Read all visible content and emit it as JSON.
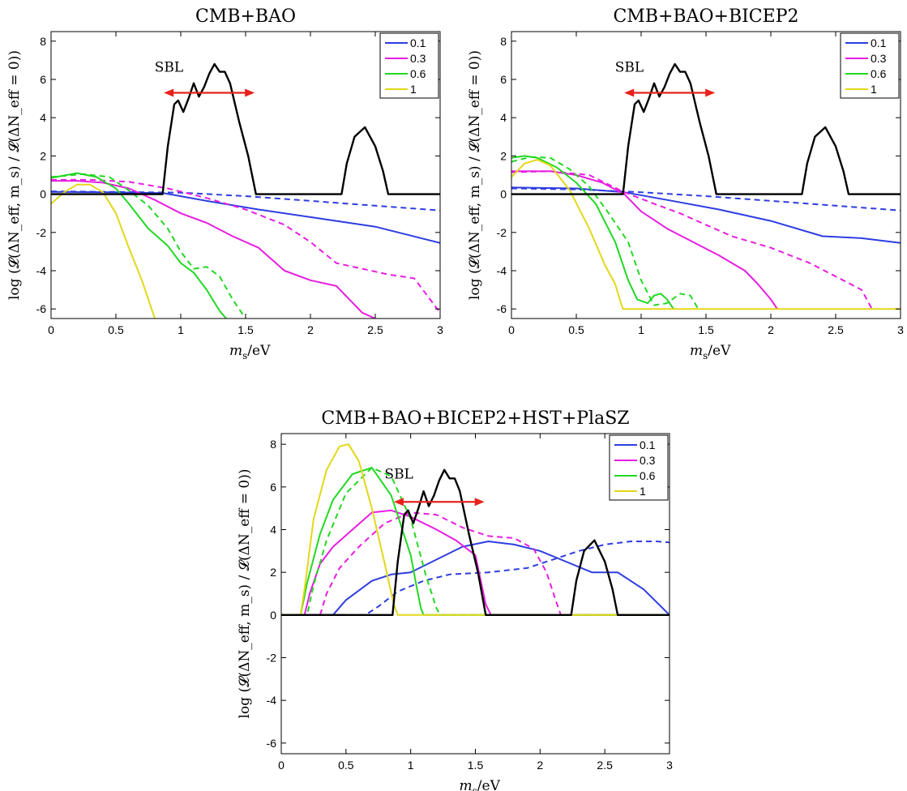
{
  "chart_data": [
    {
      "type": "line",
      "title": "CMB+BAO",
      "xlabel_main": "m",
      "xlabel_sub": "s",
      "xlabel_rest": "/eV",
      "ylabel": "log (𝓛(ΔN_eff, m_s) / 𝓛(ΔN_eff = 0))",
      "xlim": [
        0,
        3
      ],
      "ylim": [
        -6.5,
        8.5
      ],
      "xticks": [
        "0",
        "0.5",
        "1",
        "1.5",
        "2",
        "2.5",
        "3"
      ],
      "yticks": [
        "-6",
        "-4",
        "-2",
        "0",
        "2",
        "4",
        "6",
        "8"
      ],
      "legend": {
        "position": "top-right",
        "entries": [
          "0.1",
          "0.3",
          "0.6",
          "1"
        ]
      },
      "annotation": {
        "label": "SBL",
        "arrow_x": [
          0.87,
          1.57
        ],
        "arrow_y": 5.3,
        "color": "#e8221b"
      },
      "series": [
        {
          "name": "0.1",
          "color": "#2e3de0",
          "dash": false,
          "x": [
            0,
            0.5,
            0.87,
            1.2,
            1.6,
            2.0,
            2.5,
            3.0
          ],
          "y": [
            0.12,
            0.1,
            0.05,
            -0.35,
            -0.8,
            -1.2,
            -1.7,
            -2.55
          ]
        },
        {
          "name": "0.1",
          "color": "#2e3de0",
          "dash": true,
          "x": [
            0,
            0.5,
            1.0,
            1.5,
            2.0,
            2.5,
            3.0
          ],
          "y": [
            0.15,
            0.12,
            0.08,
            -0.1,
            -0.35,
            -0.6,
            -0.85
          ]
        },
        {
          "name": "0.3",
          "color": "#e81ee0",
          "dash": false,
          "x": [
            0,
            0.2,
            0.4,
            0.6,
            0.8,
            1.0,
            1.2,
            1.4,
            1.6,
            1.8,
            2.0,
            2.2,
            2.4,
            2.5
          ],
          "y": [
            0.7,
            0.7,
            0.6,
            0.3,
            -0.3,
            -1.0,
            -1.5,
            -2.2,
            -2.8,
            -4.0,
            -4.5,
            -4.8,
            -6.2,
            -6.5
          ]
        },
        {
          "name": "0.3",
          "color": "#e81ee0",
          "dash": true,
          "x": [
            0,
            0.3,
            0.6,
            0.9,
            1.2,
            1.5,
            1.8,
            2.0,
            2.2,
            2.4,
            2.6,
            2.8,
            3.0
          ],
          "y": [
            0.75,
            0.75,
            0.65,
            0.3,
            -0.2,
            -0.8,
            -1.6,
            -2.5,
            -3.6,
            -3.9,
            -4.2,
            -4.4,
            -6.2
          ]
        },
        {
          "name": "0.6",
          "color": "#22d822",
          "dash": false,
          "x": [
            0,
            0.2,
            0.35,
            0.5,
            0.6,
            0.75,
            0.9,
            1.0,
            1.1,
            1.2,
            1.3,
            1.35
          ],
          "y": [
            0.85,
            1.1,
            0.9,
            0.3,
            -0.5,
            -1.8,
            -2.7,
            -3.6,
            -4.1,
            -5.0,
            -6.1,
            -6.5
          ]
        },
        {
          "name": "0.6",
          "color": "#22d822",
          "dash": true,
          "x": [
            0,
            0.25,
            0.45,
            0.6,
            0.75,
            0.9,
            1.0,
            1.1,
            1.2,
            1.3,
            1.4,
            1.5
          ],
          "y": [
            0.9,
            1.05,
            0.9,
            0.2,
            -0.6,
            -1.8,
            -3.0,
            -3.9,
            -3.8,
            -4.3,
            -5.5,
            -6.5
          ]
        },
        {
          "name": "1",
          "color": "#e3d719",
          "dash": false,
          "x": [
            0,
            0.1,
            0.2,
            0.3,
            0.4,
            0.5,
            0.6,
            0.7,
            0.8
          ],
          "y": [
            -0.5,
            0.1,
            0.5,
            0.5,
            0.1,
            -1.0,
            -2.8,
            -4.5,
            -6.5
          ]
        },
        {
          "name": "SBL",
          "color": "#000000",
          "dash": false,
          "x": [
            0,
            0.86,
            0.9,
            0.95,
            0.98,
            1.02,
            1.06,
            1.1,
            1.14,
            1.18,
            1.22,
            1.26,
            1.3,
            1.34,
            1.38,
            1.45,
            1.52,
            1.58,
            2.24,
            2.28,
            2.34,
            2.42,
            2.5,
            2.56,
            2.6,
            3.0
          ],
          "y": [
            0,
            0,
            2.5,
            4.7,
            4.9,
            4.3,
            5.0,
            5.8,
            5.1,
            5.6,
            6.3,
            6.8,
            6.4,
            6.4,
            5.8,
            3.8,
            2.0,
            0,
            0,
            1.6,
            3.0,
            3.5,
            2.5,
            1.2,
            0,
            0
          ]
        }
      ]
    },
    {
      "type": "line",
      "title": "CMB+BAO+BICEP2",
      "xlabel_main": "m",
      "xlabel_sub": "s",
      "xlabel_rest": "/eV",
      "ylabel": "log (𝓛(ΔN_eff, m_s) / 𝓛(ΔN_eff = 0))",
      "xlim": [
        0,
        3
      ],
      "ylim": [
        -6.5,
        8.5
      ],
      "xticks": [
        "0",
        "0.5",
        "1",
        "1.5",
        "2",
        "2.5",
        "3"
      ],
      "yticks": [
        "-6",
        "-4",
        "-2",
        "0",
        "2",
        "4",
        "6",
        "8"
      ],
      "legend": {
        "position": "top-right",
        "entries": [
          "0.1",
          "0.3",
          "0.6",
          "1"
        ]
      },
      "annotation": {
        "label": "SBL",
        "arrow_x": [
          0.87,
          1.57
        ],
        "arrow_y": 5.3,
        "color": "#e8221b"
      },
      "series": [
        {
          "name": "0.1",
          "color": "#2e3de0",
          "dash": false,
          "x": [
            0,
            0.5,
            0.87,
            1.2,
            1.6,
            2.0,
            2.4,
            2.7,
            3.0
          ],
          "y": [
            0.35,
            0.3,
            0.1,
            -0.3,
            -0.8,
            -1.4,
            -2.2,
            -2.3,
            -2.55
          ]
        },
        {
          "name": "0.1",
          "color": "#2e3de0",
          "dash": true,
          "x": [
            0,
            0.5,
            1.0,
            1.5,
            2.0,
            2.5,
            3.0
          ],
          "y": [
            0.3,
            0.25,
            0.1,
            -0.1,
            -0.35,
            -0.6,
            -0.85
          ]
        },
        {
          "name": "0.3",
          "color": "#e81ee0",
          "dash": false,
          "x": [
            0,
            0.3,
            0.5,
            0.7,
            0.87,
            1.0,
            1.2,
            1.4,
            1.6,
            1.8,
            1.9,
            2.0,
            2.05
          ],
          "y": [
            1.2,
            1.2,
            1.0,
            0.6,
            0.0,
            -0.9,
            -1.8,
            -2.5,
            -3.2,
            -4.0,
            -4.7,
            -5.5,
            -6.0
          ]
        },
        {
          "name": "0.3",
          "color": "#e81ee0",
          "dash": true,
          "x": [
            0,
            0.3,
            0.6,
            0.87,
            1.1,
            1.3,
            1.5,
            1.7,
            2.0,
            2.3,
            2.5,
            2.7,
            2.78
          ],
          "y": [
            1.15,
            1.2,
            1.0,
            0.1,
            -0.5,
            -1.0,
            -1.6,
            -2.2,
            -2.8,
            -3.6,
            -4.3,
            -5.0,
            -6.0
          ]
        },
        {
          "name": "0.6",
          "color": "#22d822",
          "dash": false,
          "x": [
            0,
            0.1,
            0.2,
            0.35,
            0.5,
            0.65,
            0.8,
            0.9,
            0.97,
            1.05,
            1.1,
            1.15,
            1.2,
            1.25
          ],
          "y": [
            1.9,
            2.0,
            1.9,
            1.4,
            0.6,
            -0.5,
            -2.5,
            -4.5,
            -5.5,
            -5.7,
            -5.3,
            -5.2,
            -5.5,
            -6.0
          ]
        },
        {
          "name": "0.6",
          "color": "#22d822",
          "dash": true,
          "x": [
            0,
            0.15,
            0.3,
            0.45,
            0.6,
            0.75,
            0.9,
            1.0,
            1.1,
            1.2,
            1.3,
            1.38,
            1.44
          ],
          "y": [
            1.7,
            1.95,
            1.9,
            1.3,
            0.4,
            -1.0,
            -2.5,
            -4.5,
            -5.8,
            -5.7,
            -5.2,
            -5.3,
            -6.0
          ]
        },
        {
          "name": "1",
          "color": "#e3d719",
          "dash": false,
          "x": [
            0,
            0.1,
            0.2,
            0.3,
            0.45,
            0.6,
            0.72,
            0.8,
            0.84,
            0.86,
            3.0
          ],
          "y": [
            0.9,
            1.6,
            1.8,
            1.5,
            0.2,
            -1.8,
            -3.7,
            -4.7,
            -5.6,
            -6.0,
            -6.0
          ]
        },
        {
          "name": "SBL",
          "color": "#000000",
          "dash": false,
          "x": [
            0,
            0.86,
            0.9,
            0.95,
            0.98,
            1.02,
            1.06,
            1.1,
            1.14,
            1.18,
            1.22,
            1.26,
            1.3,
            1.34,
            1.38,
            1.45,
            1.52,
            1.58,
            2.24,
            2.28,
            2.34,
            2.42,
            2.5,
            2.56,
            2.6,
            3.0
          ],
          "y": [
            0,
            0,
            2.5,
            4.7,
            4.9,
            4.3,
            5.0,
            5.8,
            5.1,
            5.6,
            6.3,
            6.8,
            6.4,
            6.4,
            5.8,
            3.8,
            2.0,
            0,
            0,
            1.6,
            3.0,
            3.5,
            2.5,
            1.2,
            0,
            0
          ]
        }
      ]
    },
    {
      "type": "line",
      "title": "CMB+BAO+BICEP2+HST+PlaSZ",
      "xlabel_main": "m",
      "xlabel_sub": "s",
      "xlabel_rest": "/eV",
      "ylabel": "log (𝓛(ΔN_eff, m_s) / 𝓛(ΔN_eff = 0))",
      "xlim": [
        0,
        3
      ],
      "ylim": [
        -6.5,
        8.5
      ],
      "xticks": [
        "0",
        "0.5",
        "1",
        "1.5",
        "2",
        "2.5",
        "3"
      ],
      "yticks": [
        "-6",
        "-4",
        "-2",
        "0",
        "2",
        "4",
        "6",
        "8"
      ],
      "legend": {
        "position": "top-right",
        "entries": [
          "0.1",
          "0.3",
          "0.6",
          "1"
        ]
      },
      "annotation": {
        "label": "SBL",
        "arrow_x": [
          0.87,
          1.57
        ],
        "arrow_y": 5.3,
        "color": "#e8221b"
      },
      "series": [
        {
          "name": "0.1",
          "color": "#2e3de0",
          "dash": false,
          "x": [
            0,
            0.4,
            0.5,
            0.7,
            0.85,
            1.0,
            1.2,
            1.4,
            1.6,
            1.8,
            2.0,
            2.2,
            2.4,
            2.6,
            2.8,
            3.0
          ],
          "y": [
            0,
            0,
            0.7,
            1.6,
            1.9,
            2.0,
            2.6,
            3.2,
            3.45,
            3.3,
            3.0,
            2.5,
            2.0,
            2.0,
            1.2,
            0
          ]
        },
        {
          "name": "0.1",
          "color": "#2e3de0",
          "dash": true,
          "x": [
            0,
            0.65,
            0.75,
            0.9,
            1.1,
            1.3,
            1.6,
            1.9,
            2.1,
            2.3,
            2.5,
            2.7,
            2.9,
            3.0
          ],
          "y": [
            0,
            0,
            0.4,
            1.1,
            1.6,
            1.9,
            2.0,
            2.2,
            2.6,
            3.0,
            3.3,
            3.45,
            3.45,
            3.4
          ]
        },
        {
          "name": "0.3",
          "color": "#e81ee0",
          "dash": false,
          "x": [
            0,
            0.18,
            0.22,
            0.3,
            0.4,
            0.55,
            0.7,
            0.85,
            1.0,
            1.2,
            1.35,
            1.5,
            1.58,
            1.62,
            3.0
          ],
          "y": [
            0,
            0,
            1.0,
            2.4,
            3.2,
            4.0,
            4.8,
            4.9,
            4.6,
            4.0,
            3.5,
            2.8,
            0.5,
            0,
            0
          ]
        },
        {
          "name": "0.3",
          "color": "#e81ee0",
          "dash": true,
          "x": [
            0,
            0.3,
            0.35,
            0.45,
            0.6,
            0.8,
            1.0,
            1.2,
            1.4,
            1.6,
            1.8,
            1.95,
            2.05,
            2.12,
            2.16,
            3.0
          ],
          "y": [
            0,
            0,
            1.0,
            2.2,
            3.2,
            4.3,
            4.8,
            4.7,
            4.1,
            3.7,
            3.6,
            3.1,
            2.0,
            0.7,
            0,
            0
          ]
        },
        {
          "name": "0.6",
          "color": "#22d822",
          "dash": false,
          "x": [
            0,
            0.15,
            0.2,
            0.3,
            0.4,
            0.55,
            0.7,
            0.85,
            1.0,
            1.05,
            1.08,
            1.1,
            3.0
          ],
          "y": [
            0,
            0,
            1.5,
            3.8,
            5.4,
            6.6,
            6.9,
            5.6,
            2.8,
            1.2,
            0.3,
            0,
            0
          ]
        },
        {
          "name": "0.6",
          "color": "#22d822",
          "dash": true,
          "x": [
            0,
            0.2,
            0.25,
            0.35,
            0.5,
            0.7,
            0.85,
            1.0,
            1.12,
            1.2,
            1.23,
            3.0
          ],
          "y": [
            0,
            0,
            1.4,
            3.5,
            5.7,
            6.9,
            6.5,
            4.5,
            1.8,
            0.3,
            0,
            0
          ]
        },
        {
          "name": "1",
          "color": "#e3d719",
          "dash": false,
          "x": [
            0,
            0.15,
            0.18,
            0.25,
            0.35,
            0.45,
            0.52,
            0.6,
            0.7,
            0.8,
            0.87,
            0.9,
            3.0
          ],
          "y": [
            0,
            0,
            1.2,
            4.5,
            6.8,
            7.9,
            8.0,
            7.2,
            5.0,
            2.4,
            0.5,
            0,
            0
          ]
        },
        {
          "name": "SBL",
          "color": "#000000",
          "dash": false,
          "x": [
            0,
            0.86,
            0.9,
            0.95,
            0.98,
            1.02,
            1.06,
            1.1,
            1.14,
            1.18,
            1.22,
            1.26,
            1.3,
            1.34,
            1.38,
            1.45,
            1.52,
            1.58,
            2.24,
            2.28,
            2.34,
            2.42,
            2.5,
            2.56,
            2.6,
            3.0
          ],
          "y": [
            0,
            0,
            2.5,
            4.7,
            4.9,
            4.3,
            5.0,
            5.8,
            5.1,
            5.6,
            6.3,
            6.8,
            6.4,
            6.4,
            5.8,
            3.8,
            2.0,
            0,
            0,
            1.6,
            3.0,
            3.5,
            2.5,
            1.2,
            0,
            0
          ]
        }
      ]
    }
  ]
}
